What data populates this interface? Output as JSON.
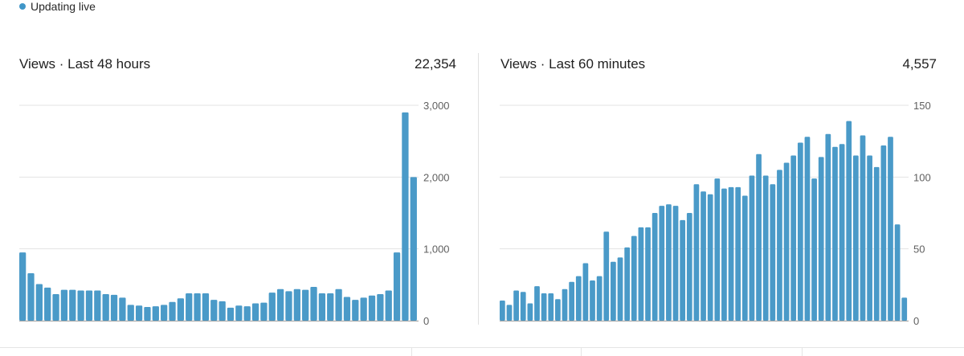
{
  "status": {
    "label": "Updating live",
    "color": "#4096c8"
  },
  "panels": [
    {
      "title": "Views · Last 48 hours",
      "total": "22,354"
    },
    {
      "title": "Views · Last 60 minutes",
      "total": "4,557"
    }
  ],
  "colors": {
    "bar": "#4a9ac8",
    "grid": "#e3e3e3"
  },
  "chart_data": [
    {
      "type": "bar",
      "title": "Views · Last 48 hours",
      "ylim": [
        0,
        3000
      ],
      "yticks": [
        0,
        1000,
        2000,
        3000
      ],
      "ytick_labels": [
        "0",
        "1,000",
        "2,000",
        "3,000"
      ],
      "values": [
        950,
        660,
        510,
        460,
        370,
        430,
        430,
        420,
        420,
        420,
        370,
        360,
        320,
        220,
        210,
        190,
        200,
        220,
        260,
        310,
        380,
        380,
        380,
        290,
        270,
        180,
        210,
        200,
        240,
        250,
        390,
        440,
        410,
        440,
        430,
        470,
        380,
        380,
        440,
        330,
        290,
        320,
        350,
        370,
        420,
        950,
        2900,
        2000
      ]
    },
    {
      "type": "bar",
      "title": "Views · Last 60 minutes",
      "ylim": [
        0,
        150
      ],
      "yticks": [
        0,
        50,
        100,
        150
      ],
      "ytick_labels": [
        "0",
        "50",
        "100",
        "150"
      ],
      "values": [
        14,
        11,
        21,
        20,
        12,
        24,
        19,
        19,
        15,
        22,
        27,
        31,
        40,
        28,
        31,
        62,
        41,
        44,
        51,
        59,
        65,
        65,
        75,
        80,
        81,
        80,
        70,
        75,
        95,
        90,
        88,
        99,
        92,
        93,
        93,
        87,
        101,
        116,
        101,
        95,
        105,
        110,
        115,
        124,
        128,
        99,
        114,
        130,
        121,
        123,
        139,
        115,
        129,
        115,
        107,
        122,
        128,
        67,
        16
      ]
    }
  ]
}
